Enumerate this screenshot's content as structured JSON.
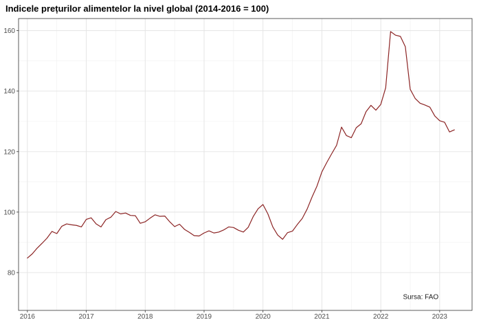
{
  "chart_data": {
    "type": "line",
    "title": "Indicele prețurilor alimentelor la nivel global (2014-2016 = 100)",
    "xlabel": "",
    "ylabel": "",
    "xlim": [
      2015.85,
      2023.55
    ],
    "ylim": [
      67.5,
      164
    ],
    "x_ticks": [
      2016,
      2017,
      2018,
      2019,
      2020,
      2021,
      2022,
      2023
    ],
    "x_tick_labels": [
      "2016",
      "2017",
      "2018",
      "2019",
      "2020",
      "2021",
      "2022",
      "2023"
    ],
    "y_ticks": [
      80,
      100,
      120,
      140,
      160
    ],
    "y_tick_labels": [
      "80",
      "100",
      "120",
      "140",
      "160"
    ],
    "grid": true,
    "line_color": "#8b2323",
    "annotation": "Sursa: FAO",
    "series": [
      {
        "x": [
          "2016-01",
          "2016-02",
          "2016-03",
          "2016-04",
          "2016-05",
          "2016-06",
          "2016-07",
          "2016-08",
          "2016-09",
          "2016-10",
          "2016-11",
          "2016-12",
          "2017-01",
          "2017-02",
          "2017-03",
          "2017-04",
          "2017-05",
          "2017-06",
          "2017-07",
          "2017-08",
          "2017-09",
          "2017-10",
          "2017-11",
          "2017-12",
          "2018-01",
          "2018-02",
          "2018-03",
          "2018-04",
          "2018-05",
          "2018-06",
          "2018-07",
          "2018-08",
          "2018-09",
          "2018-10",
          "2018-11",
          "2018-12",
          "2019-01",
          "2019-02",
          "2019-03",
          "2019-04",
          "2019-05",
          "2019-06",
          "2019-07",
          "2019-08",
          "2019-09",
          "2019-10",
          "2019-11",
          "2019-12",
          "2020-01",
          "2020-02",
          "2020-03",
          "2020-04",
          "2020-05",
          "2020-06",
          "2020-07",
          "2020-08",
          "2020-09",
          "2020-10",
          "2020-11",
          "2020-12",
          "2021-01",
          "2021-02",
          "2021-03",
          "2021-04",
          "2021-05",
          "2021-06",
          "2021-07",
          "2021-08",
          "2021-09",
          "2021-10",
          "2021-11",
          "2021-12",
          "2022-01",
          "2022-02",
          "2022-03",
          "2022-04",
          "2022-05",
          "2022-06",
          "2022-07",
          "2022-08",
          "2022-09",
          "2022-10",
          "2022-11",
          "2022-12",
          "2023-01",
          "2023-02",
          "2023-03",
          "2023-04"
        ],
        "values": [
          84.8,
          86.2,
          88.1,
          89.7,
          91.4,
          93.6,
          92.9,
          95.3,
          96.1,
          95.8,
          95.6,
          95.1,
          97.6,
          98.1,
          96.1,
          95.1,
          97.5,
          98.3,
          100.2,
          99.4,
          99.7,
          98.9,
          98.8,
          96.3,
          96.8,
          98.0,
          99.1,
          98.6,
          98.7,
          96.8,
          95.2,
          96.0,
          94.3,
          93.3,
          92.2,
          92.1,
          93.1,
          93.8,
          93.1,
          93.4,
          94.1,
          95.1,
          94.9,
          94.0,
          93.4,
          95.0,
          98.5,
          101.1,
          102.5,
          99.4,
          95.1,
          92.4,
          91.0,
          93.2,
          93.7,
          95.9,
          97.9,
          101.0,
          105.0,
          108.6,
          113.3,
          116.4,
          119.3,
          122.1,
          128.1,
          125.3,
          124.6,
          127.9,
          129.2,
          133.2,
          135.3,
          133.7,
          135.6,
          141.1,
          159.7,
          158.5,
          158.1,
          154.7,
          140.6,
          137.6,
          136.0,
          135.4,
          134.7,
          131.8,
          130.2,
          129.7,
          126.5,
          127.2
        ]
      }
    ]
  }
}
